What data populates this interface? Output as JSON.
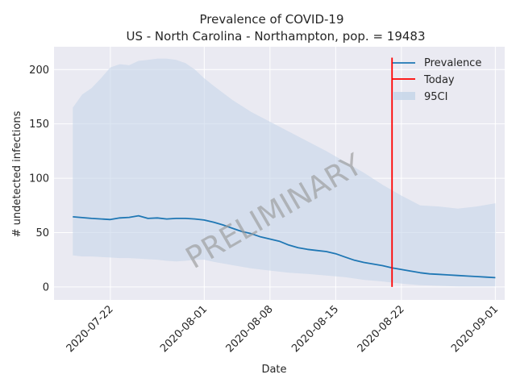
{
  "chart_data": {
    "type": "line",
    "title": "Prevalence of COVID-19",
    "subtitle": "US - North Carolina - Northampton, pop. = 19483",
    "xlabel": "Date",
    "ylabel": "# undetected infections",
    "watermark": "PRELIMINARY",
    "ylim": [
      -12,
      221
    ],
    "xlim": [
      "2020-07-16",
      "2020-09-02"
    ],
    "grid": true,
    "legend_position": "top-right",
    "x_ticks": [
      "2020-07-22",
      "2020-08-01",
      "2020-08-08",
      "2020-08-15",
      "2020-08-22",
      "2020-09-01"
    ],
    "y_ticks": [
      0,
      50,
      100,
      150,
      200
    ],
    "today": {
      "name": "Today",
      "date": "2020-08-21",
      "y_range": [
        0,
        211
      ],
      "color": "#ff0000"
    },
    "series": [
      {
        "name": "Prevalence",
        "color": "#1f77b4",
        "x": [
          "2020-07-18",
          "2020-07-20",
          "2020-07-22",
          "2020-07-23",
          "2020-07-24",
          "2020-07-25",
          "2020-07-26",
          "2020-07-27",
          "2020-07-28",
          "2020-07-29",
          "2020-07-30",
          "2020-07-31",
          "2020-08-01",
          "2020-08-02",
          "2020-08-03",
          "2020-08-04",
          "2020-08-05",
          "2020-08-06",
          "2020-08-07",
          "2020-08-08",
          "2020-08-09",
          "2020-08-10",
          "2020-08-11",
          "2020-08-12",
          "2020-08-13",
          "2020-08-14",
          "2020-08-15",
          "2020-08-16",
          "2020-08-17",
          "2020-08-18",
          "2020-08-19",
          "2020-08-20",
          "2020-08-21",
          "2020-08-22",
          "2020-08-23",
          "2020-08-24",
          "2020-08-25",
          "2020-08-26",
          "2020-08-27",
          "2020-08-28",
          "2020-08-29",
          "2020-08-30",
          "2020-08-31",
          "2020-09-01"
        ],
        "values": [
          64.5,
          63,
          62,
          63.5,
          64,
          65.5,
          63,
          63.5,
          62.5,
          63,
          63,
          62.5,
          61.5,
          59.5,
          57,
          54,
          51,
          49,
          46,
          44,
          42,
          38.5,
          36,
          34.5,
          33.5,
          32.5,
          30.5,
          27.5,
          24.5,
          22.5,
          21,
          19.5,
          17.5,
          16,
          14.5,
          13,
          12,
          11.5,
          11,
          10.5,
          10,
          9.5,
          9,
          8.5
        ]
      }
    ],
    "band": {
      "name": "95CI",
      "color": "#c6d6e9",
      "x": [
        "2020-07-18",
        "2020-07-19",
        "2020-07-20",
        "2020-07-21",
        "2020-07-22",
        "2020-07-23",
        "2020-07-24",
        "2020-07-25",
        "2020-07-26",
        "2020-07-27",
        "2020-07-28",
        "2020-07-29",
        "2020-07-30",
        "2020-07-31",
        "2020-08-01",
        "2020-08-02",
        "2020-08-04",
        "2020-08-06",
        "2020-08-08",
        "2020-08-10",
        "2020-08-12",
        "2020-08-14",
        "2020-08-16",
        "2020-08-18",
        "2020-08-20",
        "2020-08-22",
        "2020-08-24",
        "2020-08-26",
        "2020-08-28",
        "2020-08-30",
        "2020-09-01"
      ],
      "upper": [
        165,
        177,
        183,
        192,
        202,
        205,
        204,
        208,
        209,
        210,
        210,
        209,
        206,
        200,
        192,
        185,
        172,
        161,
        152,
        143,
        134,
        125,
        115,
        105,
        94,
        84,
        75,
        74,
        72,
        74,
        77
      ],
      "lower": [
        29,
        28,
        28,
        27.5,
        27,
        26.5,
        26.5,
        26,
        25.5,
        25,
        24,
        23.5,
        24,
        25,
        25,
        23,
        20,
        17,
        15,
        13,
        12,
        10.5,
        9,
        6.5,
        5,
        3,
        1.5,
        1,
        0.5,
        0.5,
        0.5
      ]
    }
  }
}
